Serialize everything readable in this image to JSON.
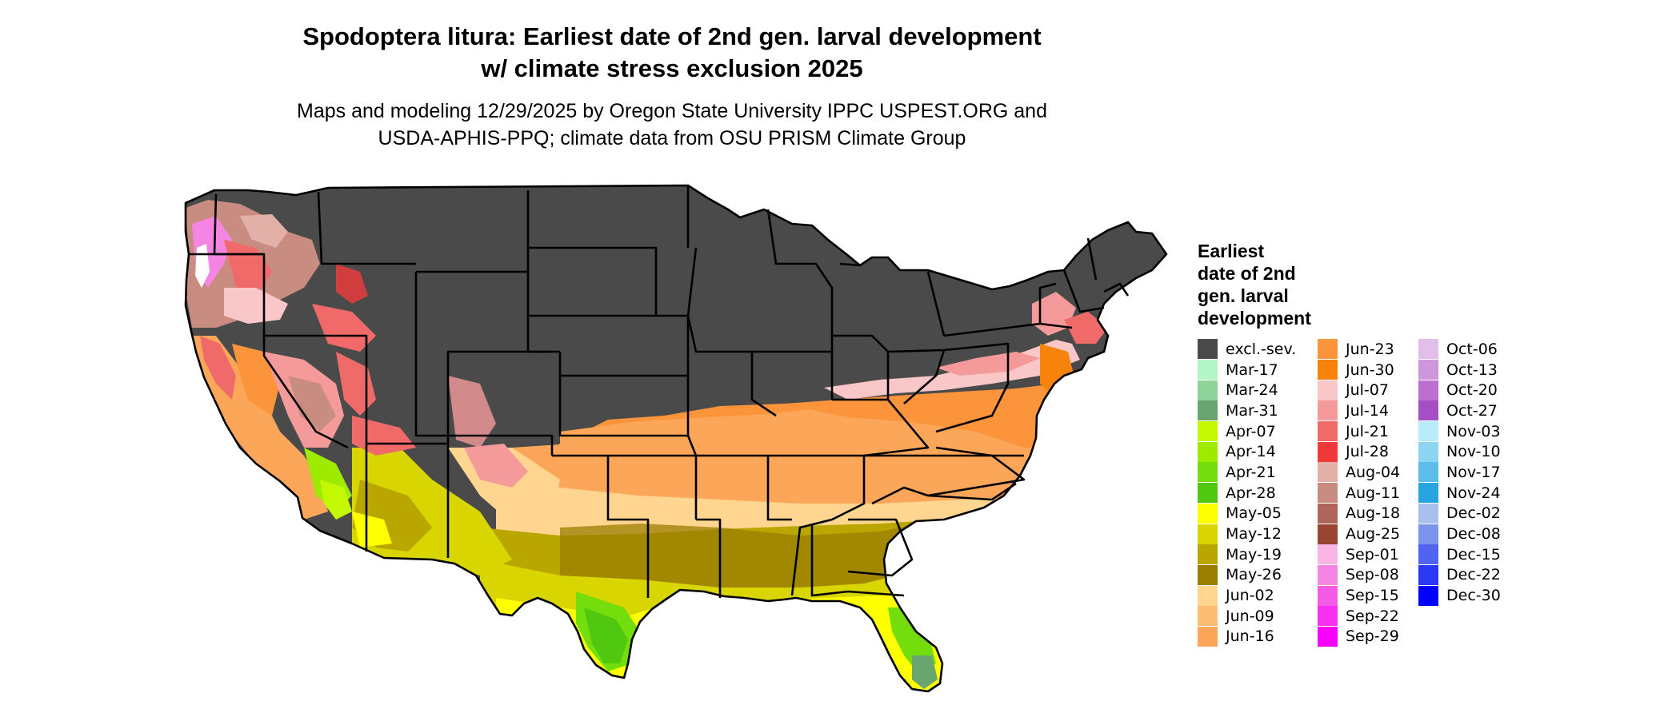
{
  "title_line1": "Spodoptera litura: Earliest date of 2nd gen. larval development",
  "title_line2": "w/ climate stress exclusion 2025",
  "subtitle_line1": "Maps and modeling 12/29/2025 by Oregon State University IPPC USPEST.ORG and",
  "subtitle_line2": "USDA-APHIS-PPQ; climate data from OSU PRISM Climate Group",
  "legend": {
    "title_lines": [
      "Earliest",
      "date of 2nd",
      "gen. larval",
      "development"
    ],
    "columns": [
      [
        {
          "label": "excl.-sev.",
          "color": "#4a4a4a"
        },
        {
          "label": "Mar-17",
          "color": "#b3f5c5"
        },
        {
          "label": "Mar-24",
          "color": "#8fd39b"
        },
        {
          "label": "Mar-31",
          "color": "#68a56f"
        },
        {
          "label": "Apr-07",
          "color": "#c3f800"
        },
        {
          "label": "Apr-14",
          "color": "#9eea00"
        },
        {
          "label": "Apr-21",
          "color": "#74de0c"
        },
        {
          "label": "Apr-28",
          "color": "#4fc80f"
        },
        {
          "label": "May-05",
          "color": "#ffff00"
        },
        {
          "label": "May-12",
          "color": "#d9d500"
        },
        {
          "label": "May-19",
          "color": "#b9a700"
        },
        {
          "label": "May-26",
          "color": "#9a7e00"
        },
        {
          "label": "Jun-02",
          "color": "#ffd58f"
        },
        {
          "label": "Jun-09",
          "color": "#ffbd73"
        },
        {
          "label": "Jun-16",
          "color": "#fca659"
        }
      ],
      [
        {
          "label": "Jun-23",
          "color": "#fb943a"
        },
        {
          "label": "Jun-30",
          "color": "#f7830c"
        },
        {
          "label": "Jul-07",
          "color": "#f9c7c7"
        },
        {
          "label": "Jul-14",
          "color": "#f59a9a"
        },
        {
          "label": "Jul-21",
          "color": "#f06a6a"
        },
        {
          "label": "Jul-28",
          "color": "#f03a3a"
        },
        {
          "label": "Aug-04",
          "color": "#e2b0a6"
        },
        {
          "label": "Aug-11",
          "color": "#c98c81"
        },
        {
          "label": "Aug-18",
          "color": "#b0665a"
        },
        {
          "label": "Aug-25",
          "color": "#9a4433"
        },
        {
          "label": "Sep-01",
          "color": "#f7b4e4"
        },
        {
          "label": "Sep-08",
          "color": "#f585e2"
        },
        {
          "label": "Sep-15",
          "color": "#f55be6"
        },
        {
          "label": "Sep-22",
          "color": "#f530ee"
        },
        {
          "label": "Sep-29",
          "color": "#f700ff"
        }
      ],
      [
        {
          "label": "Oct-06",
          "color": "#e1bfe8"
        },
        {
          "label": "Oct-13",
          "color": "#cf97db"
        },
        {
          "label": "Oct-20",
          "color": "#bb70d0"
        },
        {
          "label": "Oct-27",
          "color": "#a54fc4"
        },
        {
          "label": "Nov-03",
          "color": "#b8ecfb"
        },
        {
          "label": "Nov-10",
          "color": "#8cd4f2"
        },
        {
          "label": "Nov-17",
          "color": "#5dbde9"
        },
        {
          "label": "Nov-24",
          "color": "#2aa4de"
        },
        {
          "label": "Dec-02",
          "color": "#a9c0ee"
        },
        {
          "label": "Dec-08",
          "color": "#7b94ec"
        },
        {
          "label": "Dec-15",
          "color": "#5064f0"
        },
        {
          "label": "Dec-22",
          "color": "#2b39f3"
        },
        {
          "label": "Dec-30",
          "color": "#0000ff"
        }
      ]
    ]
  }
}
